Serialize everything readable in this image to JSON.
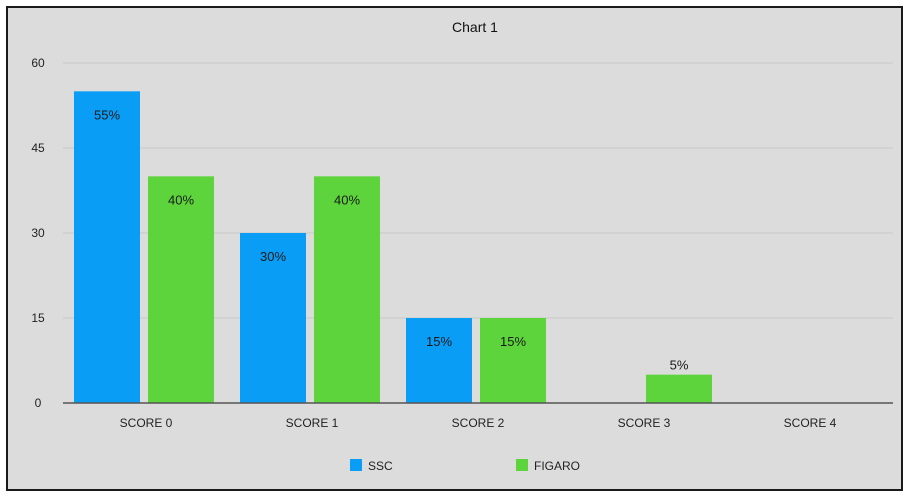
{
  "chart_data": {
    "type": "bar",
    "title": "Chart 1",
    "xlabel": "",
    "ylabel": "",
    "categories": [
      "SCORE 0",
      "SCORE 1",
      "SCORE 2",
      "SCORE 3",
      "SCORE 4"
    ],
    "ylim": [
      0,
      60
    ],
    "yticks": [
      "0",
      "15",
      "30",
      "45",
      "60"
    ],
    "grid": true,
    "legend_position": "bottom",
    "series": [
      {
        "name": "SSC",
        "color": "#0a9df5",
        "values": [
          55,
          30,
          15,
          null,
          null
        ],
        "labels": [
          "55%",
          "30%",
          "15%",
          "",
          ""
        ]
      },
      {
        "name": "FIGARO",
        "color": "#5dd43b",
        "values": [
          40,
          40,
          15,
          5,
          null
        ],
        "labels": [
          "40%",
          "40%",
          "15%",
          "5%",
          ""
        ]
      }
    ]
  }
}
